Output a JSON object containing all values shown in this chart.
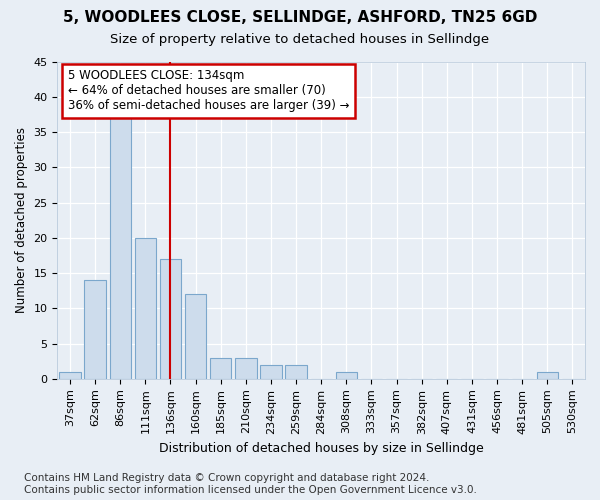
{
  "title1": "5, WOODLEES CLOSE, SELLINDGE, ASHFORD, TN25 6GD",
  "title2": "Size of property relative to detached houses in Sellindge",
  "xlabel": "Distribution of detached houses by size in Sellindge",
  "ylabel": "Number of detached properties",
  "categories": [
    "37sqm",
    "62sqm",
    "86sqm",
    "111sqm",
    "136sqm",
    "160sqm",
    "185sqm",
    "210sqm",
    "234sqm",
    "259sqm",
    "284sqm",
    "308sqm",
    "333sqm",
    "357sqm",
    "382sqm",
    "407sqm",
    "431sqm",
    "456sqm",
    "481sqm",
    "505sqm",
    "530sqm"
  ],
  "values": [
    1,
    14,
    37,
    20,
    17,
    12,
    3,
    3,
    2,
    2,
    0,
    1,
    0,
    0,
    0,
    0,
    0,
    0,
    0,
    1,
    0
  ],
  "bar_color": "#cddcec",
  "bar_edge_color": "#7ba7cc",
  "vline_x": 4.0,
  "vline_color": "#cc0000",
  "annotation_line1": "5 WOODLEES CLOSE: 134sqm",
  "annotation_line2": "← 64% of detached houses are smaller (70)",
  "annotation_line3": "36% of semi-detached houses are larger (39) →",
  "annotation_box_color": "#ffffff",
  "annotation_box_edge": "#cc0000",
  "bg_color": "#e8eef5",
  "plot_bg_color": "#e8eef5",
  "grid_color": "#ffffff",
  "footnote": "Contains HM Land Registry data © Crown copyright and database right 2024.\nContains public sector information licensed under the Open Government Licence v3.0.",
  "ylim": [
    0,
    45
  ],
  "title1_fontsize": 11,
  "title2_fontsize": 9.5,
  "xlabel_fontsize": 9,
  "ylabel_fontsize": 8.5,
  "tick_fontsize": 8,
  "annotation_fontsize": 8.5,
  "footnote_fontsize": 7.5
}
